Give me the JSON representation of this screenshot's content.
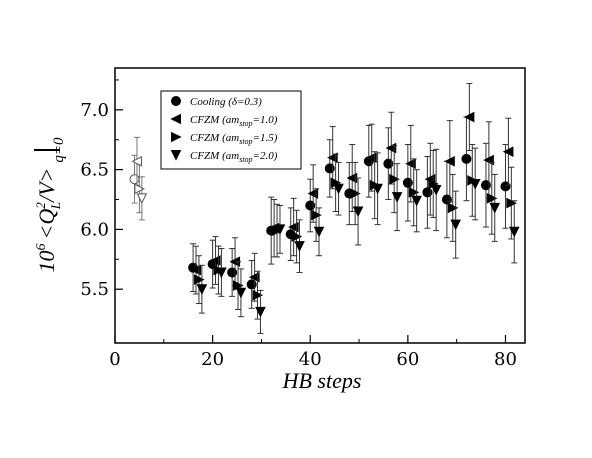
{
  "chart_data": {
    "type": "scatter",
    "xlabel": "HB steps",
    "ylabel": {
      "prefix": "10",
      "prefix_exp": "6",
      "main": "<Q",
      "main_sub": "L",
      "main_sup": "2",
      "main_end": "/V>",
      "bar_sub": "q=0"
    },
    "xlim": [
      0,
      84
    ],
    "ylim": [
      5.05,
      7.35
    ],
    "xticks": [
      0,
      20,
      40,
      60,
      80
    ],
    "yticks": [
      5.5,
      6.0,
      6.5,
      7.0
    ],
    "legend": {
      "placement": "top-left",
      "entries": [
        {
          "marker": "circle",
          "text": "Cooling (δ=0.3)"
        },
        {
          "marker": "triangle-left",
          "text": "CFZM (am",
          "sub": "stop",
          "end": "=1.0)"
        },
        {
          "marker": "triangle-right",
          "text": "CFZM (am",
          "sub": "stop",
          "end": "=1.5)"
        },
        {
          "marker": "triangle-down",
          "text": "CFZM (am",
          "sub": "stop",
          "end": "=2.0)"
        }
      ]
    },
    "series": [
      {
        "marker": "circle",
        "filled": true,
        "offset": 0,
        "x": [
          16,
          20,
          24,
          28,
          32,
          36,
          40,
          44,
          48,
          52,
          56,
          60,
          64,
          68,
          72,
          76,
          80
        ],
        "y": [
          5.68,
          5.71,
          5.64,
          5.54,
          5.99,
          5.96,
          6.2,
          6.51,
          6.3,
          6.57,
          6.55,
          6.39,
          6.31,
          6.25,
          6.59,
          6.37,
          6.36
        ],
        "err": [
          0.2,
          0.2,
          0.2,
          0.2,
          0.28,
          0.22,
          0.22,
          0.24,
          0.26,
          0.3,
          0.3,
          0.32,
          0.3,
          0.32,
          0.35,
          0.35,
          0.35
        ]
      },
      {
        "marker": "triangle-left",
        "filled": true,
        "offset": 0.6,
        "x": [
          16,
          20,
          24,
          28,
          32,
          36,
          40,
          44,
          48,
          52,
          56,
          60,
          64,
          68,
          72,
          76,
          80
        ],
        "y": [
          5.66,
          5.74,
          5.73,
          5.6,
          6.01,
          6.02,
          6.3,
          6.6,
          6.43,
          6.6,
          6.68,
          6.55,
          6.42,
          6.57,
          6.94,
          6.58,
          6.65
        ],
        "err": [
          0.2,
          0.2,
          0.2,
          0.2,
          0.24,
          0.24,
          0.24,
          0.26,
          0.28,
          0.28,
          0.3,
          0.32,
          0.3,
          0.34,
          0.28,
          0.32,
          0.28
        ]
      },
      {
        "marker": "triangle-right",
        "filled": true,
        "offset": 1.2,
        "x": [
          16,
          20,
          24,
          28,
          32,
          36,
          40,
          44,
          48,
          52,
          56,
          60,
          64,
          68,
          72,
          76,
          80
        ],
        "y": [
          5.58,
          5.66,
          5.53,
          5.45,
          5.99,
          5.94,
          6.12,
          6.39,
          6.3,
          6.37,
          6.42,
          6.31,
          6.38,
          6.18,
          6.41,
          6.26,
          6.22
        ],
        "err": [
          0.2,
          0.2,
          0.2,
          0.2,
          0.22,
          0.22,
          0.22,
          0.24,
          0.26,
          0.28,
          0.28,
          0.28,
          0.28,
          0.28,
          0.3,
          0.3,
          0.3
        ]
      },
      {
        "marker": "triangle-down",
        "filled": true,
        "offset": 1.8,
        "x": [
          16,
          20,
          24,
          28,
          32,
          36,
          40,
          44,
          48,
          52,
          56,
          60,
          64,
          68,
          72,
          76,
          80
        ],
        "y": [
          5.5,
          5.64,
          5.47,
          5.31,
          6.0,
          5.86,
          5.98,
          6.34,
          6.15,
          6.34,
          6.27,
          6.24,
          6.33,
          6.04,
          6.38,
          6.18,
          5.98
        ],
        "err": [
          0.2,
          0.2,
          0.2,
          0.18,
          0.2,
          0.22,
          0.2,
          0.22,
          0.28,
          0.3,
          0.28,
          0.26,
          0.34,
          0.28,
          0.3,
          0.28,
          0.26
        ]
      },
      {
        "marker": "circle",
        "filled": false,
        "offset": 0,
        "x": [
          4
        ],
        "y": [
          6.42
        ],
        "err": [
          0.2
        ]
      },
      {
        "marker": "triangle-left",
        "filled": false,
        "offset": 0.5,
        "x": [
          4
        ],
        "y": [
          6.57
        ],
        "err": [
          0.2
        ]
      },
      {
        "marker": "triangle-right",
        "filled": false,
        "offset": 1.0,
        "x": [
          4
        ],
        "y": [
          6.34
        ],
        "err": [
          0.2
        ]
      },
      {
        "marker": "triangle-down",
        "filled": false,
        "offset": 1.5,
        "x": [
          4
        ],
        "y": [
          6.26
        ],
        "err": [
          0.18
        ]
      }
    ]
  }
}
